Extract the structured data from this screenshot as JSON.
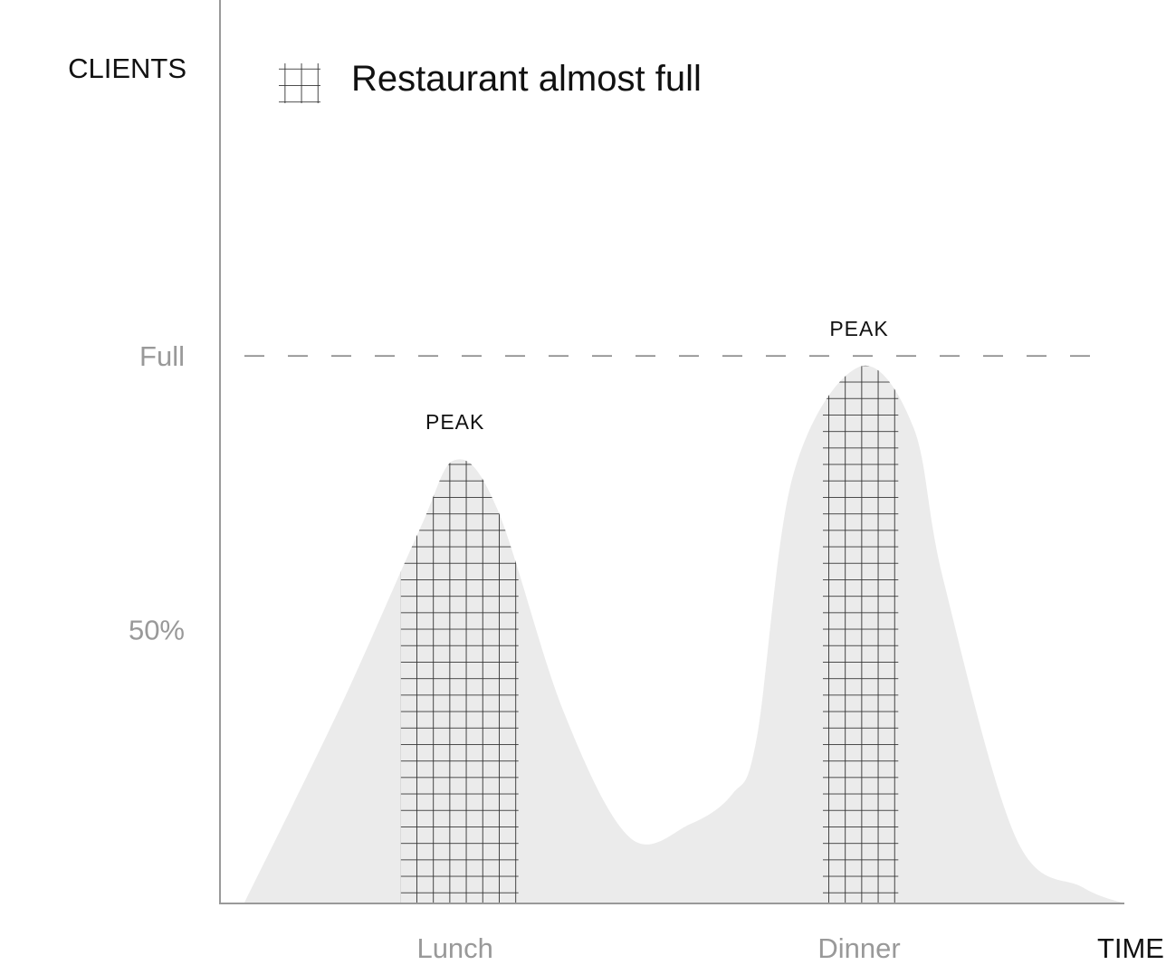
{
  "chart_data": {
    "type": "area",
    "title": "",
    "ylabel": "CLIENTS",
    "xlabel": "TIME",
    "y_ticks": [
      {
        "label": "Full",
        "value": 100
      },
      {
        "label": "50%",
        "value": 50
      }
    ],
    "x_ticks": [
      {
        "label": "Lunch",
        "value": 12.9
      },
      {
        "label": "Dinner",
        "value": 19.6
      }
    ],
    "xlim": [
      9.0,
      24.0
    ],
    "ylim": [
      0,
      165
    ],
    "reference_line": {
      "value": 100,
      "style": "dashed",
      "label": "Full"
    },
    "series": [
      {
        "fill": "#ebebeb",
        "x": [
          9.4,
          11.0,
          12.3,
          12.9,
          13.6,
          14.7,
          15.8,
          16.8,
          17.5,
          17.9,
          18.5,
          19.6,
          20.5,
          21.0,
          22.2,
          23.3,
          24.0
        ],
        "values": [
          0,
          36,
          68,
          81,
          72,
          35,
          12,
          14.5,
          20,
          30,
          78,
          98,
          87,
          59,
          12,
          3,
          0
        ]
      }
    ],
    "highlight_regions": [
      {
        "name": "Restaurant almost full",
        "label": "PEAK",
        "x_start": 12.0,
        "x_end": 13.95,
        "peak_value": 81,
        "peak_x": 12.9
      },
      {
        "name": "Restaurant almost full",
        "label": "PEAK",
        "x_start": 19.0,
        "x_end": 20.25,
        "peak_value": 98,
        "peak_x": 19.6
      }
    ],
    "legend": {
      "position": "top-left",
      "entries": [
        {
          "label": "Restaurant almost full",
          "pattern": "grid"
        }
      ]
    },
    "colors": {
      "area": "#ebebeb",
      "grid_lines": "#333333",
      "axis": "#999999",
      "tick_text": "#999999",
      "axis_title": "#111111"
    }
  }
}
